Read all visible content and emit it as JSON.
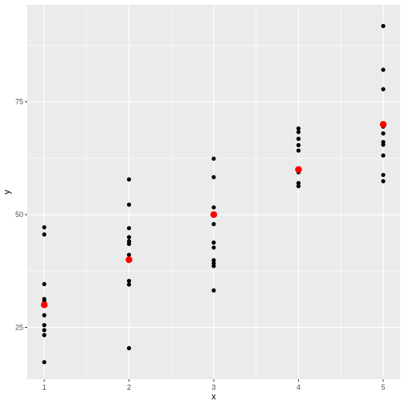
{
  "chart_data": {
    "type": "scatter",
    "title": "",
    "xlabel": "x",
    "ylabel": "y",
    "xlim": [
      0.8,
      5.2
    ],
    "ylim": [
      13.5,
      96.5
    ],
    "x_ticks": [
      1,
      2,
      3,
      4,
      5
    ],
    "x_tick_labels": [
      "1",
      "2",
      "3",
      "4",
      "5"
    ],
    "x_minor_ticks": [
      1.5,
      2.5,
      3.5,
      4.5
    ],
    "y_ticks": [
      25,
      50,
      75
    ],
    "y_tick_labels": [
      "25",
      "50",
      "75"
    ],
    "y_minor_ticks": [
      37.5,
      62.5,
      87.5
    ],
    "grid": true,
    "panel_background": "#ebebeb",
    "grid_color": "#ffffff",
    "series": [
      {
        "color": "#000000",
        "points": [
          {
            "x": 1,
            "y": 47.2
          },
          {
            "x": 1,
            "y": 45.6
          },
          {
            "x": 1,
            "y": 34.6
          },
          {
            "x": 1,
            "y": 31.3
          },
          {
            "x": 1,
            "y": 30.8
          },
          {
            "x": 1,
            "y": 27.7
          },
          {
            "x": 1,
            "y": 25.5
          },
          {
            "x": 1,
            "y": 24.4
          },
          {
            "x": 1,
            "y": 23.3
          },
          {
            "x": 1,
            "y": 17.3
          },
          {
            "x": 2,
            "y": 57.8
          },
          {
            "x": 2,
            "y": 52.2
          },
          {
            "x": 2,
            "y": 47.0
          },
          {
            "x": 2,
            "y": 45.0
          },
          {
            "x": 2,
            "y": 44.1
          },
          {
            "x": 2,
            "y": 43.5
          },
          {
            "x": 2,
            "y": 41.1
          },
          {
            "x": 2,
            "y": 35.3
          },
          {
            "x": 2,
            "y": 34.5
          },
          {
            "x": 2,
            "y": 20.4
          },
          {
            "x": 3,
            "y": 62.4
          },
          {
            "x": 3,
            "y": 58.3
          },
          {
            "x": 3,
            "y": 51.6
          },
          {
            "x": 3,
            "y": 47.9
          },
          {
            "x": 3,
            "y": 43.8
          },
          {
            "x": 3,
            "y": 42.7
          },
          {
            "x": 3,
            "y": 39.9
          },
          {
            "x": 3,
            "y": 39.2
          },
          {
            "x": 3,
            "y": 38.6
          },
          {
            "x": 3,
            "y": 33.2
          },
          {
            "x": 4,
            "y": 69.1
          },
          {
            "x": 4,
            "y": 68.3
          },
          {
            "x": 4,
            "y": 66.8
          },
          {
            "x": 4,
            "y": 65.4
          },
          {
            "x": 4,
            "y": 64.2
          },
          {
            "x": 4,
            "y": 60.2
          },
          {
            "x": 4,
            "y": 59.4
          },
          {
            "x": 4,
            "y": 57.0
          },
          {
            "x": 4,
            "y": 56.3
          },
          {
            "x": 5,
            "y": 91.8
          },
          {
            "x": 5,
            "y": 82.1
          },
          {
            "x": 5,
            "y": 77.8
          },
          {
            "x": 5,
            "y": 69.5
          },
          {
            "x": 5,
            "y": 68.0
          },
          {
            "x": 5,
            "y": 66.1
          },
          {
            "x": 5,
            "y": 65.5
          },
          {
            "x": 5,
            "y": 63.1
          },
          {
            "x": 5,
            "y": 58.8
          },
          {
            "x": 5,
            "y": 57.4
          }
        ]
      },
      {
        "color": "#ff0000",
        "points": [
          {
            "x": 1,
            "y": 30
          },
          {
            "x": 2,
            "y": 40
          },
          {
            "x": 3,
            "y": 50
          },
          {
            "x": 4,
            "y": 60
          },
          {
            "x": 5,
            "y": 70
          }
        ]
      }
    ]
  }
}
